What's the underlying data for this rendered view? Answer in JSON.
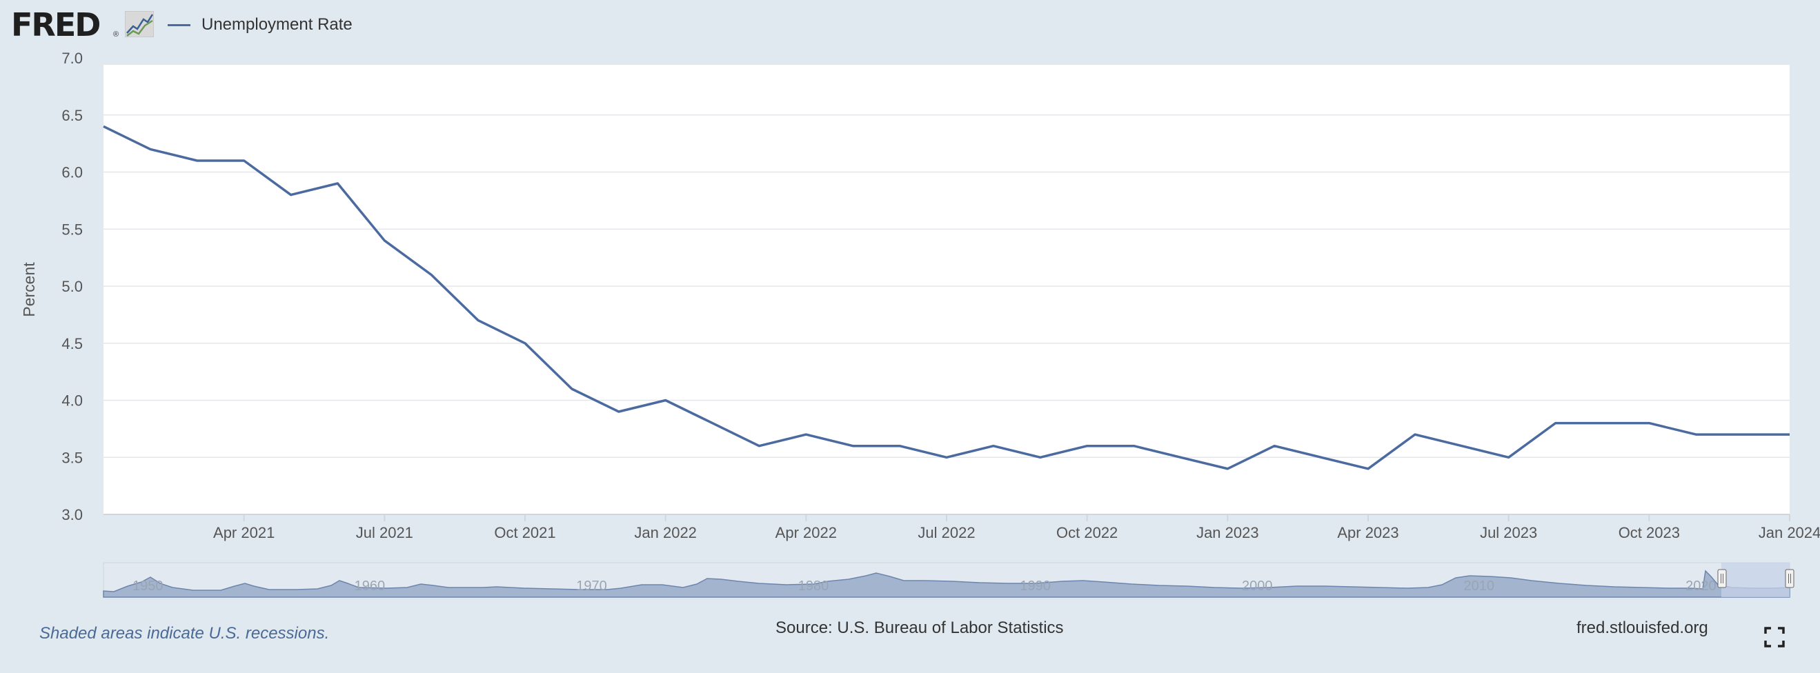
{
  "header": {
    "logo_text": "FRED",
    "logo_reg": "®",
    "legend_label": "Unemployment Rate"
  },
  "colors": {
    "series": "#4b6aa0",
    "background": "#e1e9f0",
    "plot": "#ffffff",
    "grid": "#e3e7ec",
    "navigator_fill": "#a3b4cf",
    "navigator_window": "#c5d1e8"
  },
  "chart_data": {
    "type": "line",
    "title": "",
    "ylabel": "Percent",
    "xlabel": "",
    "ylim": [
      3.0,
      7.0
    ],
    "yticks": [
      "3.0",
      "3.5",
      "4.0",
      "4.5",
      "5.0",
      "5.5",
      "6.0",
      "6.5",
      "7.0"
    ],
    "x_range": [
      "2021-01",
      "2024-01"
    ],
    "xticks": [
      {
        "date": "2021-04",
        "label": "Apr 2021"
      },
      {
        "date": "2021-07",
        "label": "Jul 2021"
      },
      {
        "date": "2021-10",
        "label": "Oct 2021"
      },
      {
        "date": "2022-01",
        "label": "Jan 2022"
      },
      {
        "date": "2022-04",
        "label": "Apr 2022"
      },
      {
        "date": "2022-07",
        "label": "Jul 2022"
      },
      {
        "date": "2022-10",
        "label": "Oct 2022"
      },
      {
        "date": "2023-01",
        "label": "Jan 2023"
      },
      {
        "date": "2023-04",
        "label": "Apr 2023"
      },
      {
        "date": "2023-07",
        "label": "Jul 2023"
      },
      {
        "date": "2023-10",
        "label": "Oct 2023"
      },
      {
        "date": "2024-01",
        "label": "Jan 2024"
      }
    ],
    "grid": true,
    "legend": "top-left",
    "series": [
      {
        "name": "Unemployment Rate",
        "x": [
          "2021-01",
          "2021-02",
          "2021-03",
          "2021-04",
          "2021-05",
          "2021-06",
          "2021-07",
          "2021-08",
          "2021-09",
          "2021-10",
          "2021-11",
          "2021-12",
          "2022-01",
          "2022-02",
          "2022-03",
          "2022-04",
          "2022-05",
          "2022-06",
          "2022-07",
          "2022-08",
          "2022-09",
          "2022-10",
          "2022-11",
          "2022-12",
          "2023-01",
          "2023-02",
          "2023-03",
          "2023-04",
          "2023-05",
          "2023-06",
          "2023-07",
          "2023-08",
          "2023-09",
          "2023-10",
          "2023-11",
          "2023-12",
          "2024-01"
        ],
        "values": [
          6.4,
          6.2,
          6.1,
          6.1,
          5.8,
          5.9,
          5.4,
          5.1,
          4.7,
          4.5,
          4.1,
          3.9,
          4.0,
          3.8,
          3.6,
          3.7,
          3.6,
          3.6,
          3.5,
          3.6,
          3.5,
          3.6,
          3.6,
          3.5,
          3.4,
          3.6,
          3.5,
          3.4,
          3.7,
          3.6,
          3.5,
          3.8,
          3.8,
          3.8,
          3.7,
          3.7,
          3.7
        ]
      }
    ],
    "navigator": {
      "labels": [
        "1950",
        "1960",
        "1970",
        "1980",
        "1990",
        "2000",
        "2010",
        "2020"
      ]
    }
  },
  "footer": {
    "recession_note": "Shaded areas indicate U.S. recessions.",
    "source": "Source: U.S. Bureau of Labor Statistics",
    "site": "fred.stlouisfed.org"
  }
}
